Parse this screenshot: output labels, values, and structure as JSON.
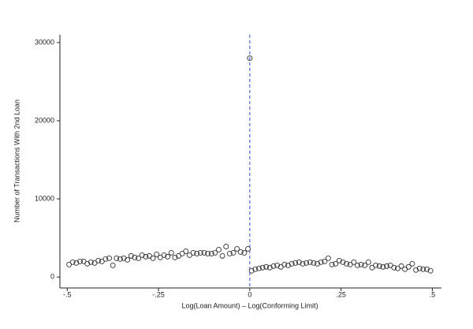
{
  "chart_data": {
    "type": "scatter",
    "xlabel": "Log(Loan Amount) – Log(Conforming Limit)",
    "ylabel": "Number of Transactions With 2nd Loan",
    "x": [
      -0.495,
      -0.485,
      -0.475,
      -0.465,
      -0.455,
      -0.445,
      -0.435,
      -0.425,
      -0.415,
      -0.405,
      -0.395,
      -0.385,
      -0.375,
      -0.365,
      -0.355,
      -0.345,
      -0.335,
      -0.325,
      -0.315,
      -0.305,
      -0.295,
      -0.285,
      -0.275,
      -0.265,
      -0.255,
      -0.245,
      -0.235,
      -0.225,
      -0.215,
      -0.205,
      -0.195,
      -0.185,
      -0.175,
      -0.165,
      -0.155,
      -0.145,
      -0.135,
      -0.125,
      -0.115,
      -0.105,
      -0.095,
      -0.085,
      -0.075,
      -0.065,
      -0.055,
      -0.045,
      -0.035,
      -0.025,
      -0.015,
      -0.005,
      0,
      0.005,
      0.015,
      0.025,
      0.035,
      0.045,
      0.055,
      0.065,
      0.075,
      0.085,
      0.095,
      0.105,
      0.115,
      0.125,
      0.135,
      0.145,
      0.155,
      0.165,
      0.175,
      0.185,
      0.195,
      0.205,
      0.215,
      0.225,
      0.235,
      0.245,
      0.255,
      0.265,
      0.275,
      0.285,
      0.295,
      0.305,
      0.315,
      0.325,
      0.335,
      0.345,
      0.355,
      0.365,
      0.375,
      0.385,
      0.395,
      0.405,
      0.415,
      0.425,
      0.435,
      0.445,
      0.455,
      0.465,
      0.475,
      0.485,
      0.495
    ],
    "values": [
      1600,
      1900,
      1800,
      2000,
      2000,
      1700,
      1900,
      1800,
      2100,
      2000,
      2300,
      2400,
      1500,
      2400,
      2300,
      2400,
      2200,
      2700,
      2500,
      2400,
      2800,
      2600,
      2700,
      2400,
      2900,
      2500,
      2800,
      2600,
      3100,
      2500,
      2700,
      3000,
      3300,
      2800,
      3100,
      3000,
      3100,
      3100,
      3000,
      3000,
      3100,
      3500,
      2700,
      3900,
      3000,
      3100,
      3600,
      3200,
      3100,
      3600,
      28000,
      800,
      1000,
      1100,
      1200,
      1300,
      1200,
      1400,
      1500,
      1300,
      1600,
      1500,
      1700,
      1800,
      1900,
      1700,
      1800,
      1900,
      1800,
      1700,
      1900,
      2000,
      2400,
      1600,
      1700,
      2100,
      1900,
      1700,
      1600,
      1900,
      1500,
      1600,
      1500,
      1900,
      1200,
      1500,
      1400,
      1300,
      1400,
      1500,
      1200,
      1100,
      1400,
      1000,
      1300,
      1700,
      900,
      1100,
      1000,
      1000,
      800
    ],
    "color": "#333333",
    "vline": 0,
    "vline_color": "#3344dd",
    "xlim": [
      -0.52,
      0.525
    ],
    "xticks": [
      {
        "value": -0.5,
        "label": "-.5"
      },
      {
        "value": -0.25,
        "label": "-.25"
      },
      0,
      {
        "value": 0.25,
        "label": ".25"
      },
      {
        "value": 0.5,
        "label": ".5"
      }
    ],
    "ylim": [
      -1400,
      31000
    ],
    "yticks": [
      0,
      10000,
      20000,
      30000
    ]
  }
}
